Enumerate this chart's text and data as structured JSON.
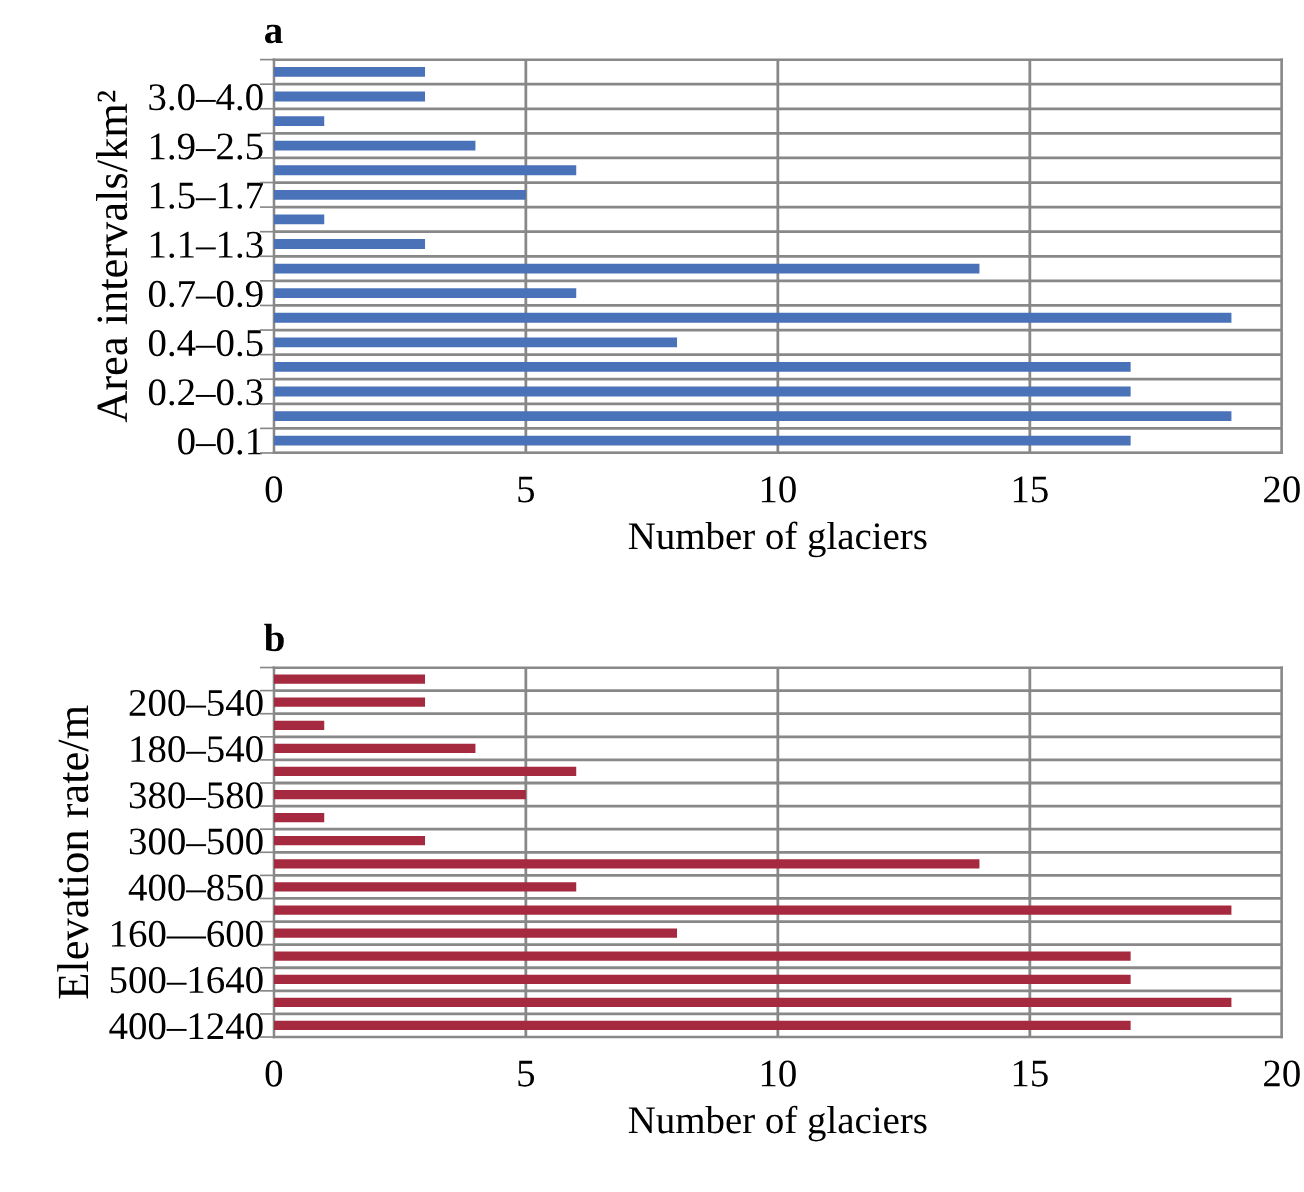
{
  "chart_data": [
    {
      "type": "bar",
      "orientation": "horizontal",
      "title": "a",
      "xlabel": "Number of glaciers",
      "ylabel": "Area intervals/km²",
      "categories": [
        null,
        "3.0–4.0",
        null,
        "1.9–2.5",
        null,
        "1.5–1.7",
        null,
        "1.1–1.3",
        null,
        "0.7–0.9",
        null,
        "0.4–0.5",
        null,
        "0.2–0.3",
        null,
        "0–0.1"
      ],
      "values": [
        3,
        3,
        1,
        4,
        6,
        5,
        1,
        3,
        14,
        6,
        19,
        8,
        17,
        17,
        19,
        17
      ],
      "color": "#4a72b8",
      "xlim": [
        0,
        20
      ],
      "xticks": [
        0,
        5,
        10,
        15,
        20
      ],
      "grid": true,
      "legend": false
    },
    {
      "type": "bar",
      "orientation": "horizontal",
      "title": "b",
      "xlabel": "Number of glaciers",
      "ylabel": "Elevation rate/m",
      "categories": [
        null,
        "200–540",
        null,
        "180–540",
        null,
        "380–580",
        null,
        "300–500",
        null,
        "400–850",
        null,
        "160—600",
        null,
        "500–1640",
        null,
        "400–1240"
      ],
      "values": [
        3,
        3,
        1,
        4,
        6,
        5,
        1,
        3,
        14,
        6,
        19,
        8,
        17,
        17,
        19,
        17
      ],
      "color": "#a52a3f",
      "xlim": [
        0,
        20
      ],
      "xticks": [
        0,
        5,
        10,
        15,
        20
      ],
      "grid": true,
      "legend": false
    }
  ]
}
